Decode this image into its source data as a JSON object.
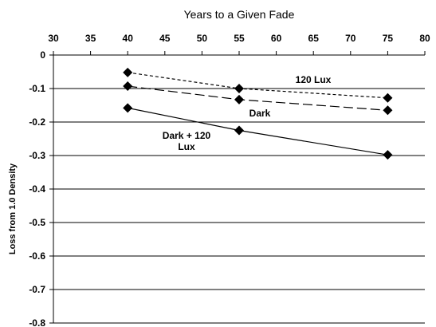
{
  "chart_data": {
    "type": "line",
    "xlabel": "Years to a Given Fade",
    "ylabel": "Loss from 1.0 Density",
    "xlim": [
      30,
      80
    ],
    "ylim": [
      -0.8,
      0
    ],
    "x_ticks": [
      "30",
      "35",
      "40",
      "45",
      "50",
      "55",
      "60",
      "65",
      "70",
      "75",
      "80"
    ],
    "y_ticks": [
      "0",
      "-0.1",
      "-0.2",
      "-0.3",
      "-0.4",
      "-0.5",
      "-0.6",
      "-0.7",
      "-0.8"
    ],
    "x_axis_position": "top",
    "grid": "horizontal",
    "legend": "none",
    "series": [
      {
        "name": "120 Lux",
        "label_lines": [
          "120 Lux"
        ],
        "line_style": "short-dash",
        "points": [
          [
            40,
            -0.052
          ],
          [
            55,
            -0.1
          ],
          [
            75,
            -0.128
          ]
        ]
      },
      {
        "name": "Dark",
        "label_lines": [
          "Dark"
        ],
        "line_style": "long-dash",
        "points": [
          [
            40,
            -0.093
          ],
          [
            55,
            -0.133
          ],
          [
            75,
            -0.165
          ]
        ]
      },
      {
        "name": "Dark + 120 Lux",
        "label_lines": [
          "Dark + 120",
          "Lux"
        ],
        "line_style": "solid",
        "points": [
          [
            40,
            -0.158
          ],
          [
            55,
            -0.225
          ],
          [
            75,
            -0.298
          ]
        ]
      }
    ]
  }
}
